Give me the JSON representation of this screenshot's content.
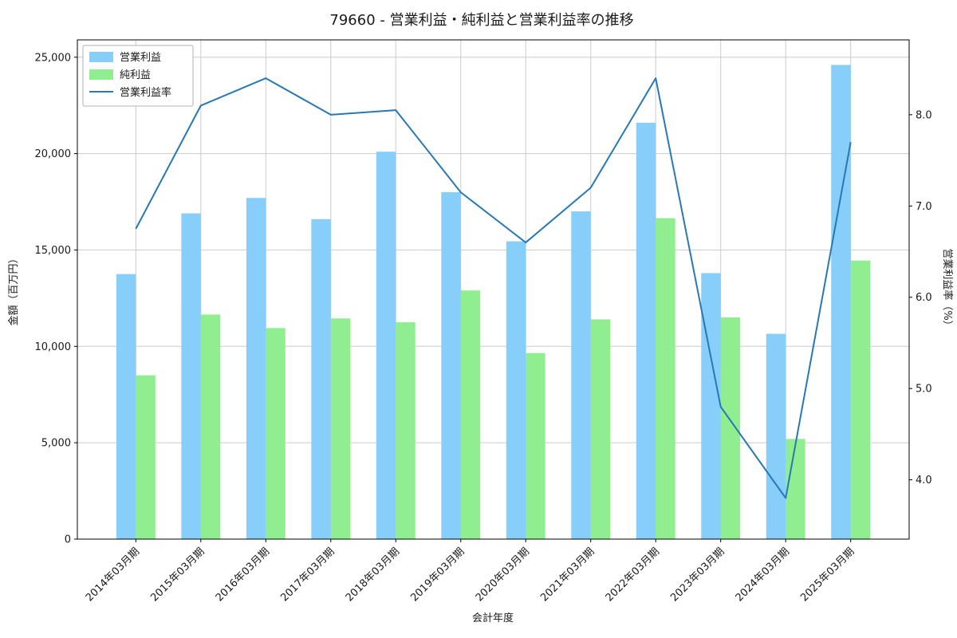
{
  "chart": {
    "title": "79660 - 営業利益・純利益と営業利益率の推移",
    "xlabel": "会計年度",
    "ylabel_left": "金額（百万円）",
    "ylabel_right": "営業利益率（%）"
  },
  "chart_data": {
    "type": "bar+line",
    "title": "79660 - 営業利益・純利益と営業利益率の推移",
    "xlabel": "会計年度",
    "ylabel_left": "金額（百万円）",
    "ylabel_right": "営業利益率（%）",
    "categories": [
      "2014年03月期",
      "2015年03月期",
      "2016年03月期",
      "2017年03月期",
      "2018年03月期",
      "2019年03月期",
      "2020年03月期",
      "2021年03月期",
      "2022年03月期",
      "2023年03月期",
      "2024年03月期",
      "2025年03月期"
    ],
    "series": [
      {
        "name": "営業利益",
        "type": "bar",
        "axis": "left",
        "color": "#87CEFA",
        "values": [
          13750,
          16900,
          17700,
          16600,
          20100,
          18000,
          15450,
          17000,
          21600,
          13800,
          10650,
          24600
        ]
      },
      {
        "name": "純利益",
        "type": "bar",
        "axis": "left",
        "color": "#90EE90",
        "values": [
          8500,
          11650,
          10950,
          11450,
          11250,
          12900,
          9650,
          11400,
          16650,
          11500,
          5200,
          14450
        ]
      },
      {
        "name": "営業利益率",
        "type": "line",
        "axis": "right",
        "color": "#2878B4",
        "values": [
          6.75,
          8.1,
          8.4,
          8.0,
          8.05,
          7.15,
          6.6,
          7.2,
          8.4,
          4.8,
          3.8,
          7.7
        ]
      }
    ],
    "left_axis": {
      "ticks": [
        0,
        5000,
        10000,
        15000,
        20000,
        25000
      ],
      "lim": [
        0,
        25900
      ]
    },
    "right_axis": {
      "ticks": [
        4.0,
        5.0,
        6.0,
        7.0,
        8.0
      ],
      "lim": [
        3.35,
        8.82
      ]
    },
    "grid": true,
    "legend_position": "upper left",
    "style": {
      "grid_color": "#cccccc",
      "spine_color": "#000000",
      "background": "#ffffff",
      "legend_border": "#b0b0b0"
    }
  }
}
